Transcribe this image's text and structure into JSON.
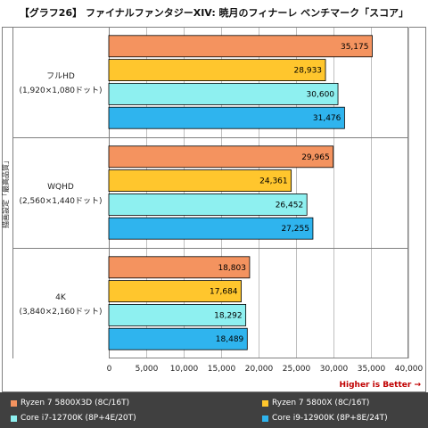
{
  "title": "【グラフ26】 ファイナルファンタジーXIV: 暁月のフィナーレ ベンチマーク「スコア」",
  "note": "Higher is Better →",
  "chart_data": {
    "type": "bar",
    "orientation": "horizontal",
    "ylabel": "描画設定「最高品質」",
    "xlim": [
      0,
      40000
    ],
    "xticks": [
      "0",
      "5,000",
      "10,000",
      "15,000",
      "20,000",
      "25,000",
      "30,000",
      "35,000",
      "40,000"
    ],
    "grid": true,
    "legend_position": "bottom",
    "categories": [
      {
        "line1": "フルHD",
        "line2": "(1,920×1,080ドット)"
      },
      {
        "line1": "WQHD",
        "line2": "(2,560×1,440ドット)"
      },
      {
        "line1": "4K",
        "line2": "(3,840×2,160ドット)"
      }
    ],
    "series": [
      {
        "name": "Ryzen 7 5800X3D (8C/16T)",
        "color": "#f4935f",
        "values": [
          35175,
          29965,
          18803
        ],
        "labels": [
          "35,175",
          "29,965",
          "18,803"
        ]
      },
      {
        "name": "Ryzen 7 5800X (8C/16T)",
        "color": "#ffc62d",
        "values": [
          28933,
          24361,
          17684
        ],
        "labels": [
          "28,933",
          "24,361",
          "17,684"
        ]
      },
      {
        "name": "Core i7-12700K (8P+4E/20T)",
        "color": "#8ef0f0",
        "values": [
          30600,
          26452,
          18292
        ],
        "labels": [
          "30,600",
          "26,452",
          "18,292"
        ]
      },
      {
        "name": "Core i9-12900K (8P+8E/24T)",
        "color": "#2fb4ee",
        "values": [
          31476,
          27255,
          18489
        ],
        "labels": [
          "31,476",
          "27,255",
          "18,489"
        ]
      }
    ]
  }
}
